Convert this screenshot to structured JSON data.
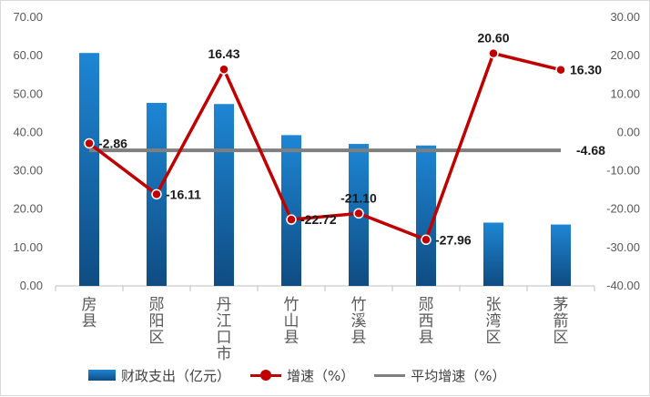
{
  "chart_data": {
    "type": "bar+line",
    "categories": [
      "房县",
      "郧阳区",
      "丹江口市",
      "竹山县",
      "竹溪县",
      "郧西县",
      "张湾区",
      "茅箭区"
    ],
    "series": [
      {
        "name": "财政支出（亿元）",
        "type": "bar",
        "axis": "left",
        "values": [
          60.7,
          47.7,
          47.4,
          39.3,
          37.0,
          36.6,
          16.5,
          16.0
        ]
      },
      {
        "name": "增速（%）",
        "type": "line",
        "axis": "right",
        "values": [
          -2.86,
          -16.11,
          16.43,
          -22.72,
          -21.1,
          -27.96,
          20.6,
          16.3
        ],
        "labels": [
          "-2.86",
          "-16.11",
          "16.43",
          "-22.72",
          "-21.10",
          "-27.96",
          "20.60",
          "16.30"
        ]
      },
      {
        "name": "平均增速（%）",
        "type": "line",
        "axis": "right",
        "value": -4.68,
        "label": "-4.68"
      }
    ],
    "left_axis": {
      "ylim": [
        0,
        70
      ],
      "ticks": [
        "0.00",
        "10.00",
        "20.00",
        "30.00",
        "40.00",
        "50.00",
        "60.00",
        "70.00"
      ]
    },
    "right_axis": {
      "ylim": [
        -40,
        30
      ],
      "ticks": [
        "-40.00",
        "-30.00",
        "-20.00",
        "-10.00",
        "0.00",
        "10.00",
        "20.00",
        "30.00"
      ]
    },
    "legend_position": "bottom",
    "colors": {
      "bar_top": "#1e86d4",
      "bar_bottom": "#0f4c82",
      "line": "#c00000",
      "avg": "#7f7f7f"
    }
  }
}
